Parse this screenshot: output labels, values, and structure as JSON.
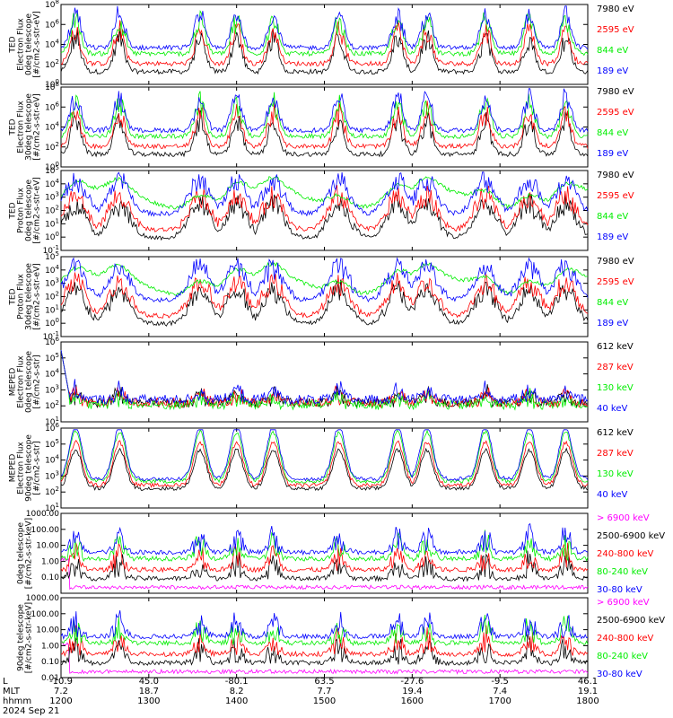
{
  "figure": {
    "date_label": "2024 Sep 21",
    "x_rows": [
      {
        "label": "L",
        "values": [
          "-10.9",
          "45.0",
          "-80.1",
          "63.5",
          "-27.6",
          "-9.5",
          "46.1"
        ]
      },
      {
        "label": "MLT",
        "values": [
          "7.2",
          "18.7",
          "8.2",
          "7.7",
          "19.4",
          "7.4",
          "19.1"
        ]
      },
      {
        "label": "hhmm",
        "values": [
          "1200",
          "1300",
          "1400",
          "1500",
          "1600",
          "1700",
          "1800"
        ]
      }
    ],
    "x_minutes": [
      0,
      60,
      120,
      180,
      240,
      300,
      360
    ]
  },
  "colors": {
    "blue": "#0000ff",
    "red": "#ff0000",
    "green": "#00ee00",
    "black": "#000000",
    "magenta": "#ff00ff"
  },
  "chart_data": [
    {
      "type": "line",
      "ylabel": [
        "TED",
        "Electron Flux",
        "0deg telescope",
        "[#/cm2-s-str-eV]"
      ],
      "scale": "log",
      "ylim": [
        1,
        100000000
      ],
      "ytick_labels": [
        "10^0",
        "10^2",
        "10^4",
        "10^6",
        "10^8"
      ],
      "series": [
        {
          "name": "7980 eV",
          "color": "black"
        },
        {
          "name": "2595 eV",
          "color": "red"
        },
        {
          "name": "844 eV",
          "color": "green"
        },
        {
          "name": "189 eV",
          "color": "blue"
        }
      ]
    },
    {
      "type": "line",
      "ylabel": [
        "TED",
        "Electron Flux",
        "30deg telescope",
        "[#/cm2-s-str-eV]"
      ],
      "scale": "log",
      "ylim": [
        1,
        100000000
      ],
      "ytick_labels": [
        "10^0",
        "10^2",
        "10^4",
        "10^6",
        "10^8"
      ],
      "series": [
        {
          "name": "7980 eV",
          "color": "black"
        },
        {
          "name": "2595 eV",
          "color": "red"
        },
        {
          "name": "844 eV",
          "color": "green"
        },
        {
          "name": "189 eV",
          "color": "blue"
        }
      ]
    },
    {
      "type": "line",
      "ylabel": [
        "TED",
        "Proton Flux",
        "0deg telescope",
        "[#/cm2-s-str-eV]"
      ],
      "scale": "log",
      "ylim": [
        0.1,
        100000
      ],
      "ytick_labels": [
        "10^-1",
        "10^0",
        "10^1",
        "10^2",
        "10^3",
        "10^4",
        "10^5"
      ],
      "series": [
        {
          "name": "7980 eV",
          "color": "black"
        },
        {
          "name": "2595 eV",
          "color": "red"
        },
        {
          "name": "844 eV",
          "color": "green"
        },
        {
          "name": "189 eV",
          "color": "blue"
        }
      ]
    },
    {
      "type": "line",
      "ylabel": [
        "TED",
        "Proton Flux",
        "30deg telescope",
        "[#/cm2-s-str-eV]"
      ],
      "scale": "log",
      "ylim": [
        0.1,
        100000
      ],
      "ytick_labels": [
        "10^-1",
        "10^0",
        "10^1",
        "10^2",
        "10^3",
        "10^4",
        "10^5"
      ],
      "series": [
        {
          "name": "7980 eV",
          "color": "black"
        },
        {
          "name": "2595 eV",
          "color": "red"
        },
        {
          "name": "844 eV",
          "color": "green"
        },
        {
          "name": "189 eV",
          "color": "blue"
        }
      ]
    },
    {
      "type": "line",
      "ylabel": [
        "MEPED",
        "Electron Flux",
        "0deg telescope",
        "[#/cm2-s-str]"
      ],
      "scale": "log",
      "ylim": [
        10,
        1000000
      ],
      "ytick_labels": [
        "10^1",
        "10^2",
        "10^3",
        "10^4",
        "10^5",
        "10^6"
      ],
      "series": [
        {
          "name": "612 keV",
          "color": "black"
        },
        {
          "name": "287 keV",
          "color": "red"
        },
        {
          "name": "130 keV",
          "color": "green"
        },
        {
          "name": "40 keV",
          "color": "blue"
        }
      ]
    },
    {
      "type": "line",
      "ylabel": [
        "MEPED",
        "Electron Flux",
        "90deg telescope",
        "[#/cm2-s-str]"
      ],
      "scale": "log",
      "ylim": [
        10,
        1000000
      ],
      "ytick_labels": [
        "10^1",
        "10^2",
        "10^3",
        "10^4",
        "10^5",
        "10^6"
      ],
      "series": [
        {
          "name": "612 keV",
          "color": "black"
        },
        {
          "name": "287 keV",
          "color": "red"
        },
        {
          "name": "130 keV",
          "color": "green"
        },
        {
          "name": "40 keV",
          "color": "blue"
        }
      ]
    },
    {
      "type": "line",
      "ylabel": [
        "0deg telescope",
        "[#/cm2-s-str-keV]"
      ],
      "scale": "log",
      "ylim": [
        0.01,
        1000
      ],
      "ytick_labels": [
        "0.10",
        "1.00",
        "10.00",
        "100.00",
        "1000.00"
      ],
      "series": [
        {
          "name": "> 6900 keV",
          "color": "magenta"
        },
        {
          "name": "2500-6900 keV",
          "color": "black"
        },
        {
          "name": "240-800 keV",
          "color": "red"
        },
        {
          "name": "80-240 keV",
          "color": "green"
        },
        {
          "name": "30-80 keV",
          "color": "blue"
        }
      ]
    },
    {
      "type": "line",
      "ylabel": [
        "90deg telescope",
        "[#/cm2-s-str-keV]"
      ],
      "scale": "log",
      "ylim": [
        0.01,
        1000
      ],
      "ytick_labels": [
        "0.01",
        "0.10",
        "1.00",
        "10.00",
        "100.00",
        "1000.00"
      ],
      "series": [
        {
          "name": "> 6900 keV",
          "color": "magenta"
        },
        {
          "name": "2500-6900 keV",
          "color": "black"
        },
        {
          "name": "240-800 keV",
          "color": "red"
        },
        {
          "name": "80-240 keV",
          "color": "green"
        },
        {
          "name": "30-80 keV",
          "color": "blue"
        }
      ]
    }
  ]
}
